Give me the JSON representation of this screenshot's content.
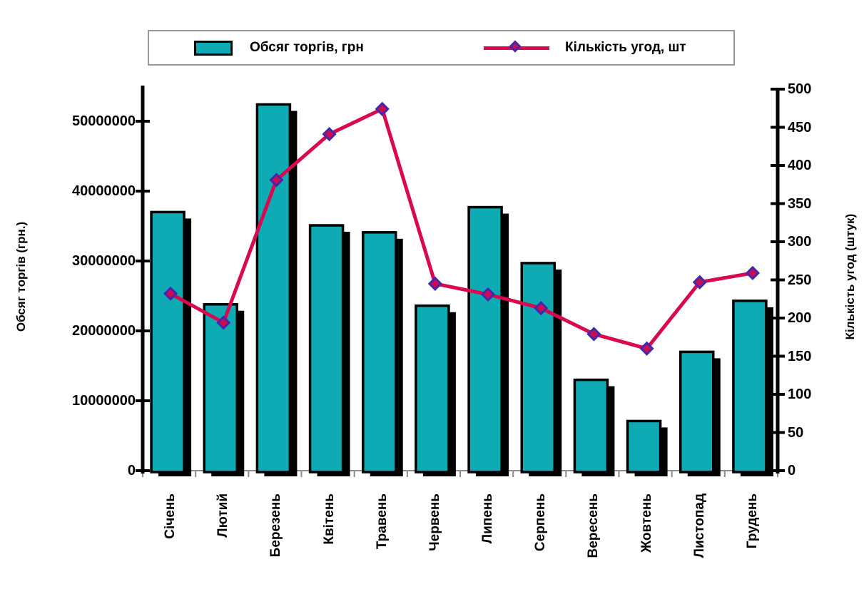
{
  "legend": {
    "bar_label": "Обсяг торгів, грн",
    "line_label": "Кількість угод, шт"
  },
  "colors": {
    "bar_fill": "#0FABB4",
    "bar_border": "#000000",
    "bar_shadow": "#000000",
    "line": "#D8094E",
    "marker_fill": "#CE0B50",
    "marker_border": "#4527AE",
    "axis": "#000000",
    "baseline": "#8C8C8C",
    "legend_border": "#9A9A9A"
  },
  "chart_data": {
    "type": "bar+line",
    "title": "",
    "categories": [
      "Січень",
      "Лютий",
      "Березень",
      "Квітень",
      "Травень",
      "Червень",
      "Липень",
      "Серпень",
      "Вересень",
      "Жовтень",
      "Листопад",
      "Грудень"
    ],
    "series": [
      {
        "name": "Обсяг торгів, грн",
        "type": "bar",
        "yaxis": "left",
        "values": [
          37000000,
          23800000,
          52400000,
          35100000,
          34100000,
          23600000,
          37700000,
          29700000,
          13000000,
          7100000,
          17000000,
          24300000
        ]
      },
      {
        "name": "Кількість угод, шт",
        "type": "line",
        "yaxis": "right",
        "values": [
          232,
          194,
          381,
          441,
          474,
          245,
          231,
          213,
          179,
          160,
          247,
          259
        ]
      }
    ],
    "left_axis": {
      "label": "Обсяг торгів (грн.)",
      "ylim": [
        0,
        50000000
      ],
      "tick_step": 10000000
    },
    "right_axis": {
      "label": "Кількість угод (штук)",
      "ylim": [
        0,
        500
      ],
      "tick_step": 50
    },
    "legend_position": "top",
    "grid": false,
    "x_tick_label_rotation": -90
  }
}
